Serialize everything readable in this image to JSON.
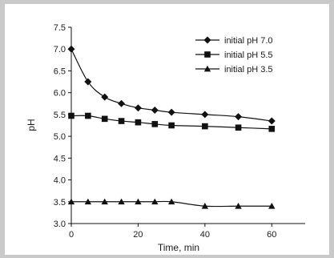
{
  "chart_data": {
    "type": "line",
    "title": "",
    "xlabel": "Time, min",
    "ylabel": "pH",
    "xlim": [
      0,
      70
    ],
    "ylim": [
      3.0,
      7.5
    ],
    "xticks": [
      0,
      20,
      40,
      60
    ],
    "yticks": [
      3.0,
      3.5,
      4.0,
      4.5,
      5.0,
      5.5,
      6.0,
      6.5,
      7.0,
      7.5
    ],
    "ytick_labels": [
      "3.0",
      "3.5",
      "4.0",
      "4.5",
      "5.0",
      "5.5",
      "6.0",
      "6.5",
      "7.0",
      "7.5"
    ],
    "grid": false,
    "legend_position": "top-right",
    "series": [
      {
        "name": "initial pH 7.0",
        "marker": "diamond",
        "x": [
          0,
          5,
          10,
          15,
          20,
          25,
          30,
          40,
          50,
          60
        ],
        "y": [
          7.0,
          6.25,
          5.9,
          5.75,
          5.65,
          5.6,
          5.55,
          5.5,
          5.45,
          5.35
        ]
      },
      {
        "name": "initial pH 5.5",
        "marker": "square",
        "x": [
          0,
          5,
          10,
          15,
          20,
          25,
          30,
          40,
          50,
          60
        ],
        "y": [
          5.47,
          5.47,
          5.4,
          5.35,
          5.32,
          5.28,
          5.25,
          5.23,
          5.2,
          5.17
        ]
      },
      {
        "name": "initial pH 3.5",
        "marker": "triangle",
        "x": [
          0,
          5,
          10,
          15,
          20,
          25,
          30,
          40,
          50,
          60
        ],
        "y": [
          3.5,
          3.5,
          3.5,
          3.5,
          3.5,
          3.5,
          3.5,
          3.4,
          3.4,
          3.4
        ]
      }
    ],
    "colors": {
      "line": "#111111",
      "frame": "#c9c9c9"
    }
  }
}
